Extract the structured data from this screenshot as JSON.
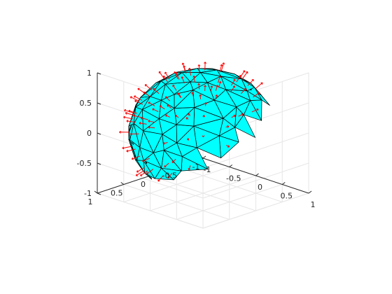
{
  "chart_data": {
    "type": "surface3d",
    "title": "",
    "xlabel": "",
    "ylabel": "",
    "zlabel": "",
    "xlim": [
      -1,
      1
    ],
    "ylim": [
      -1,
      1
    ],
    "zlim": [
      -1,
      1
    ],
    "x_ticks": [
      {
        "value": -1,
        "label": "-1"
      },
      {
        "value": -0.5,
        "label": "-0.5"
      },
      {
        "value": 0,
        "label": "0"
      },
      {
        "value": 0.5,
        "label": "0.5"
      },
      {
        "value": 1,
        "label": "1"
      }
    ],
    "y_ticks": [
      {
        "value": -1,
        "label": "-1"
      },
      {
        "value": -0.5,
        "label": "-0.5"
      },
      {
        "value": 0,
        "label": "0"
      },
      {
        "value": 0.5,
        "label": "0.5"
      },
      {
        "value": 1,
        "label": "1"
      }
    ],
    "z_ticks": [
      {
        "value": -1,
        "label": "-1"
      },
      {
        "value": -0.5,
        "label": "-0.5"
      },
      {
        "value": 0,
        "label": "0"
      },
      {
        "value": 0.5,
        "label": "0.5"
      },
      {
        "value": 1,
        "label": "1"
      }
    ],
    "grid": true,
    "box": false,
    "surface": {
      "shape": "triangulated unit sphere",
      "radius": 1,
      "face_color": "#00ffff",
      "edge_color": "#000000"
    },
    "normals": {
      "color": "#ff0000",
      "shown": true
    }
  }
}
